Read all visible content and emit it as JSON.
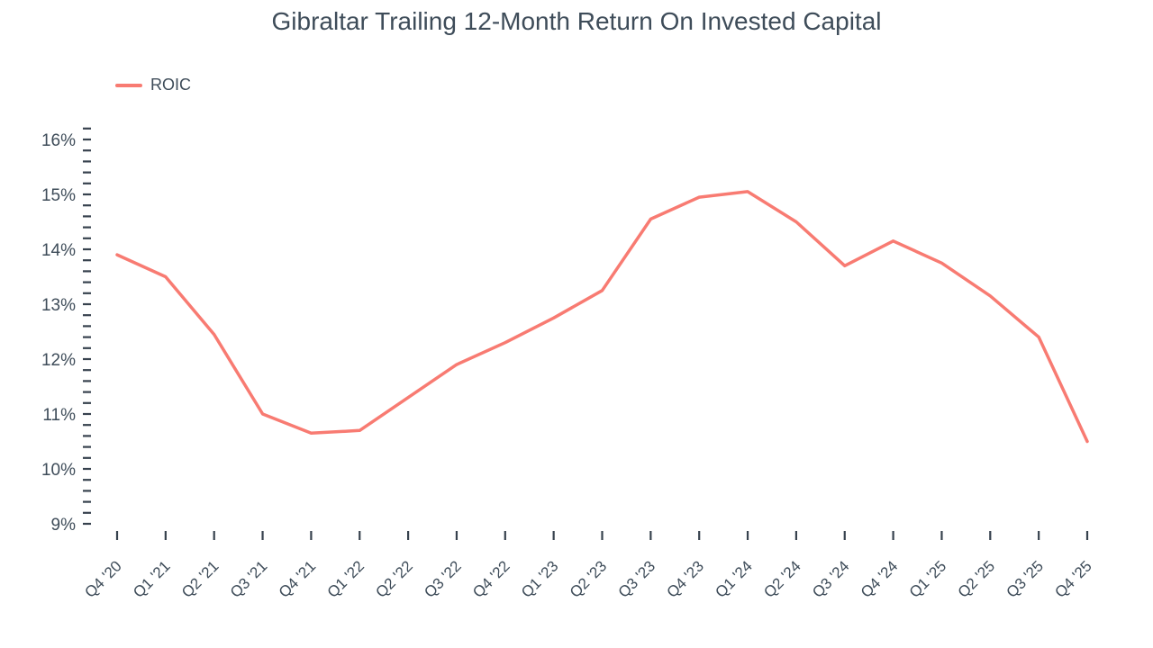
{
  "title": "Gibraltar Trailing 12-Month Return On Invested Capital",
  "legend": {
    "label": "ROIC",
    "color": "#f87b72"
  },
  "chart_data": {
    "type": "line",
    "title": "Gibraltar Trailing 12-Month Return On Invested Capital",
    "xlabel": "",
    "ylabel": "",
    "x": [
      "Q4 '20",
      "Q1 '21",
      "Q2 '21",
      "Q3 '21",
      "Q4 '21",
      "Q1 '22",
      "Q2 '22",
      "Q3 '22",
      "Q4 '22",
      "Q1 '23",
      "Q2 '23",
      "Q3 '23",
      "Q4 '23",
      "Q1 '24",
      "Q2 '24",
      "Q3 '24",
      "Q4 '24",
      "Q1 '25",
      "Q2 '25",
      "Q3 '25",
      "Q4 '25"
    ],
    "series": [
      {
        "name": "ROIC",
        "color": "#f87b72",
        "values": [
          13.9,
          13.5,
          12.45,
          11.0,
          10.65,
          10.7,
          11.3,
          11.9,
          12.3,
          12.75,
          13.25,
          14.55,
          14.95,
          15.05,
          14.5,
          13.7,
          14.15,
          13.75,
          13.15,
          12.4,
          10.5
        ]
      }
    ],
    "ylim": [
      9,
      16.2
    ],
    "y_major_step": 1,
    "y_minor_step": 0.2,
    "y_tick_labels": [
      "9%",
      "10%",
      "11%",
      "12%",
      "13%",
      "14%",
      "15%",
      "16%"
    ],
    "unit": "%",
    "grid": false,
    "legend_position": "top-left",
    "axis_text_color": "#3e4c59",
    "tick_color": "#37424e"
  }
}
